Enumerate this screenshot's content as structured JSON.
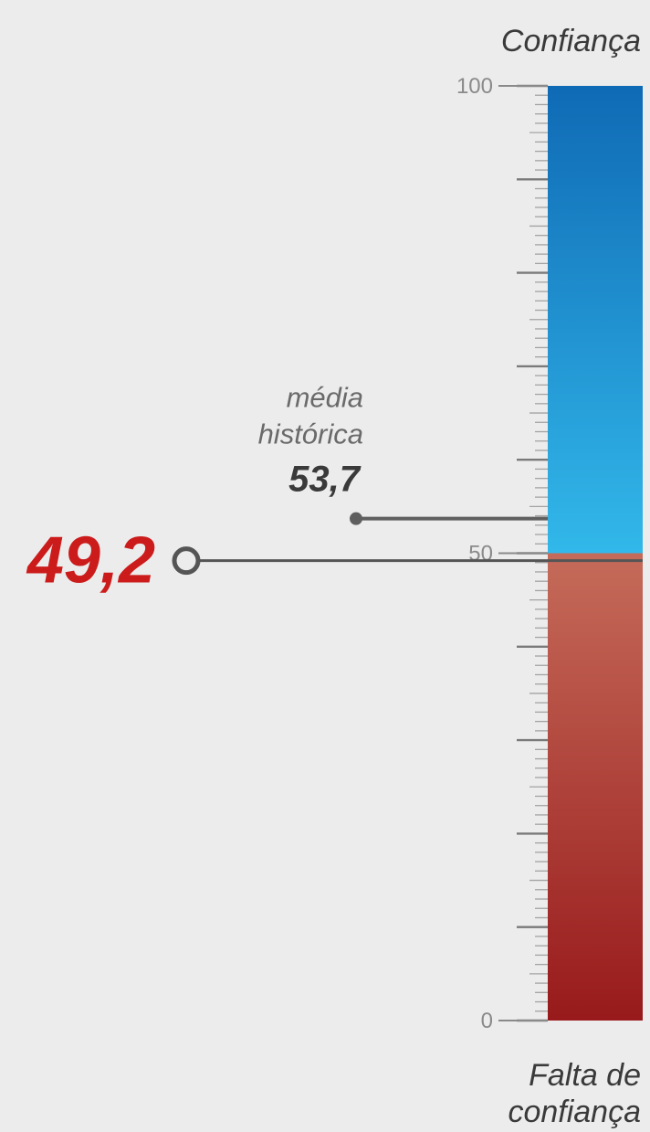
{
  "chart_data": {
    "type": "gauge",
    "top_label": "Confiança",
    "bottom_label": [
      "Falta de",
      "confiança"
    ],
    "ylim": [
      0,
      100
    ],
    "tick_labels": [
      {
        "value": 100,
        "label": "100"
      },
      {
        "value": 50,
        "label": "50"
      },
      {
        "value": 0,
        "label": "0"
      }
    ],
    "threshold": 50,
    "upper_color_top": "#0f6ab5",
    "upper_color_bottom": "#32b8ea",
    "lower_color_top": "#c56b5a",
    "lower_color_bottom": "#981a1b",
    "current": {
      "value": 49.2,
      "label": "49,2",
      "color": "#cc1b1b"
    },
    "average": {
      "value": 53.7,
      "label": "53,7",
      "caption": [
        "média",
        "histórica"
      ],
      "color": "#3a3a3a"
    }
  }
}
